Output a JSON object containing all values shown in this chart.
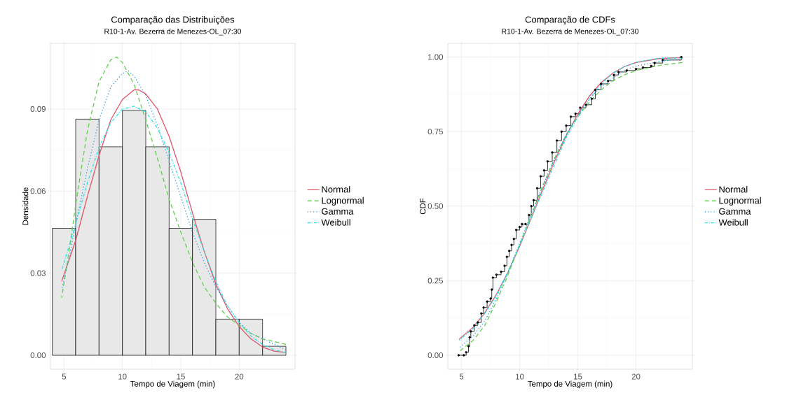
{
  "chart_data": [
    {
      "type": "histogram",
      "title": "Comparação das Distribuições",
      "subtitle": "R10-1-Av. Bezerra de Menezes-OL_07:30",
      "xlabel": "Tempo de Viagem (min)",
      "ylabel": "Densidade",
      "bins": [
        4,
        6,
        8,
        10,
        12,
        14,
        16,
        18,
        20,
        22,
        24
      ],
      "values": [
        0.0464,
        0.0863,
        0.0762,
        0.0895,
        0.0762,
        0.0464,
        0.0497,
        0.0132,
        0.0132,
        0.0033
      ],
      "color": "#e8e8e8",
      "series": [
        {
          "name": "Normal",
          "type": "line",
          "color": "#df536b",
          "line_style": "solid",
          "x": [
            4.8,
            6,
            7,
            8,
            9,
            10,
            11,
            11.4,
            12,
            13,
            14,
            15,
            16,
            17,
            18,
            19,
            20,
            21,
            22,
            23,
            24
          ],
          "values": [
            0.027,
            0.042,
            0.058,
            0.073,
            0.086,
            0.0935,
            0.097,
            0.097,
            0.0955,
            0.09,
            0.08,
            0.067,
            0.052,
            0.038,
            0.026,
            0.017,
            0.0105,
            0.006,
            0.003,
            0.0015,
            0.001
          ]
        },
        {
          "name": "Lognormal",
          "type": "line",
          "color": "#61d04f",
          "line_style": "dashed",
          "x": [
            4.8,
            5.5,
            6,
            7,
            8,
            9,
            9.5,
            10,
            11,
            12,
            13,
            14,
            15,
            16,
            17,
            18,
            19,
            20,
            21,
            22,
            23,
            24
          ],
          "values": [
            0.021,
            0.04,
            0.055,
            0.082,
            0.1,
            0.108,
            0.109,
            0.107,
            0.099,
            0.086,
            0.072,
            0.057,
            0.045,
            0.034,
            0.025,
            0.019,
            0.014,
            0.011,
            0.008,
            0.006,
            0.005,
            0.004
          ]
        },
        {
          "name": "Gamma",
          "type": "line",
          "color": "#2297e6",
          "line_style": "dotted",
          "x": [
            4.8,
            5.5,
            6,
            7,
            8,
            9,
            10,
            10.5,
            11,
            12,
            13,
            14,
            15,
            16,
            17,
            18,
            19,
            20,
            21,
            22,
            23,
            24
          ],
          "values": [
            0.024,
            0.037,
            0.048,
            0.068,
            0.086,
            0.098,
            0.103,
            0.104,
            0.102,
            0.095,
            0.084,
            0.071,
            0.058,
            0.045,
            0.034,
            0.025,
            0.018,
            0.012,
            0.008,
            0.006,
            0.004,
            0.002
          ]
        },
        {
          "name": "Weibull",
          "type": "line",
          "color": "#28e2e5",
          "line_style": "dashdot",
          "x": [
            4.8,
            6,
            7,
            8,
            9,
            10,
            11,
            12,
            13,
            14,
            15,
            16,
            17,
            18,
            19,
            20,
            21,
            22,
            23,
            24
          ],
          "values": [
            0.031,
            0.048,
            0.063,
            0.076,
            0.085,
            0.09,
            0.091,
            0.089,
            0.083,
            0.074,
            0.063,
            0.05,
            0.038,
            0.027,
            0.018,
            0.012,
            0.007,
            0.004,
            0.002,
            0.001
          ]
        }
      ],
      "xlim": [
        3.84,
        24.78
      ],
      "ylim": [
        -0.0051,
        0.114
      ],
      "xticks": [
        5,
        10,
        15,
        20
      ],
      "yticks": [
        {
          "value": 0,
          "label": "0.00"
        },
        {
          "value": 0.03,
          "label": "0.03"
        },
        {
          "value": 0.06,
          "label": "0.06"
        },
        {
          "value": 0.09,
          "label": "0.09"
        }
      ],
      "grid": true,
      "legend": "right"
    },
    {
      "type": "line",
      "title": "Comparação de CDFs",
      "subtitle": "R10-1-Av. Bezerra de Menezes-OL_07:30",
      "xlabel": "Tempo de Viagem (min)",
      "ylabel": "CDF",
      "series": [
        {
          "type": "step",
          "color": "#000000",
          "marker": "circle",
          "line_style": "solid",
          "x": [
            4.75,
            5.2,
            5.4,
            5.6,
            5.7,
            5.8,
            6.1,
            6.4,
            6.7,
            6.9,
            7.2,
            7.5,
            7.6,
            7.7,
            8.0,
            8.4,
            8.7,
            8.9,
            9.1,
            9.3,
            9.5,
            9.7,
            10.0,
            10.2,
            10.5,
            10.8,
            11.0,
            11.2,
            11.5,
            11.8,
            12.1,
            12.4,
            12.8,
            13.2,
            13.6,
            14.0,
            14.4,
            14.8,
            15.2,
            15.7,
            16.2,
            16.5,
            17,
            17.6,
            18.1,
            18.5,
            19.2,
            20,
            20.6,
            21.3,
            21.6,
            22.3,
            23.9
          ],
          "values": [
            0,
            0,
            0.01,
            0.03,
            0.06,
            0.08,
            0.1,
            0.11,
            0.14,
            0.16,
            0.18,
            0.19,
            0.22,
            0.26,
            0.27,
            0.28,
            0.3,
            0.33,
            0.35,
            0.37,
            0.39,
            0.42,
            0.43,
            0.44,
            0.44,
            0.47,
            0.5,
            0.52,
            0.56,
            0.6,
            0.62,
            0.65,
            0.68,
            0.72,
            0.75,
            0.77,
            0.8,
            0.81,
            0.83,
            0.84,
            0.86,
            0.89,
            0.91,
            0.92,
            0.94,
            0.95,
            0.955,
            0.96,
            0.965,
            0.97,
            0.98,
            0.99,
            1.0
          ]
        },
        {
          "name": "Normal",
          "type": "line",
          "color": "#df536b",
          "line_style": "solid",
          "x": [
            4.8,
            6,
            7,
            8,
            9,
            10,
            11,
            12,
            13,
            14,
            15,
            16,
            17,
            18,
            19,
            20,
            22,
            24
          ],
          "values": [
            0.054,
            0.094,
            0.142,
            0.204,
            0.279,
            0.366,
            0.461,
            0.558,
            0.651,
            0.736,
            0.809,
            0.869,
            0.914,
            0.946,
            0.968,
            0.982,
            0.995,
            0.999
          ]
        },
        {
          "name": "Lognormal",
          "type": "line",
          "color": "#61d04f",
          "line_style": "dashed",
          "x": [
            4.8,
            6,
            7,
            8,
            9,
            10,
            11,
            12,
            13,
            14,
            15,
            16,
            17,
            18,
            19,
            20,
            22,
            24
          ],
          "values": [
            0.012,
            0.05,
            0.1,
            0.18,
            0.27,
            0.37,
            0.47,
            0.57,
            0.66,
            0.74,
            0.8,
            0.85,
            0.89,
            0.92,
            0.94,
            0.955,
            0.972,
            0.982
          ]
        },
        {
          "name": "Gamma",
          "type": "line",
          "color": "#2297e6",
          "line_style": "dotted",
          "x": [
            4.8,
            6,
            7,
            8,
            9,
            10,
            11,
            12,
            13,
            14,
            15,
            16,
            17,
            18,
            19,
            20,
            22,
            24
          ],
          "values": [
            0.025,
            0.065,
            0.115,
            0.19,
            0.28,
            0.375,
            0.475,
            0.57,
            0.66,
            0.74,
            0.805,
            0.86,
            0.9,
            0.93,
            0.955,
            0.97,
            0.985,
            0.995
          ]
        },
        {
          "name": "Weibull",
          "type": "line",
          "color": "#28e2e5",
          "line_style": "dashdot",
          "x": [
            4.8,
            6,
            7,
            8,
            9,
            10,
            11,
            12,
            13,
            14,
            15,
            16,
            17,
            18,
            19,
            20,
            22,
            24
          ],
          "values": [
            0.05,
            0.09,
            0.14,
            0.2,
            0.28,
            0.37,
            0.46,
            0.55,
            0.64,
            0.73,
            0.8,
            0.86,
            0.91,
            0.945,
            0.968,
            0.983,
            0.996,
            0.997
          ]
        }
      ],
      "xlim": [
        3.82,
        24.85
      ],
      "ylim": [
        -0.047,
        1.046
      ],
      "xticks": [
        5,
        10,
        15,
        20
      ],
      "yticks": [
        {
          "value": 0,
          "label": "0.00"
        },
        {
          "value": 0.25,
          "label": "0.25"
        },
        {
          "value": 0.5,
          "label": "0.50"
        },
        {
          "value": 0.75,
          "label": "0.75"
        },
        {
          "value": 1,
          "label": "1.00"
        }
      ],
      "grid": true,
      "legend": "right"
    }
  ]
}
